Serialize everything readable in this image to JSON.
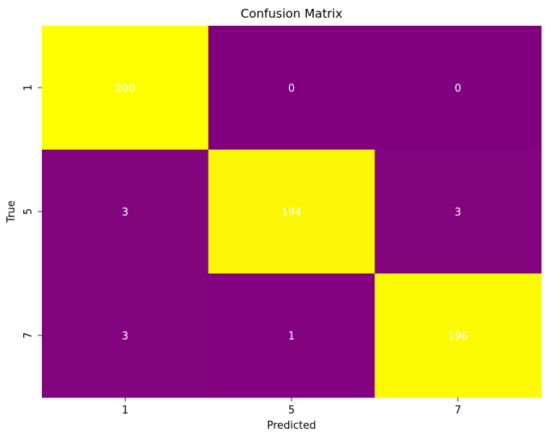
{
  "chart_data": {
    "type": "heatmap",
    "title": "Confusion Matrix",
    "xlabel": "Predicted",
    "ylabel": "True",
    "x_categories": [
      "1",
      "5",
      "7"
    ],
    "y_categories": [
      "1",
      "5",
      "7"
    ],
    "values": [
      [
        200,
        0,
        0
      ],
      [
        3,
        194,
        3
      ],
      [
        3,
        1,
        196
      ]
    ],
    "colormap": {
      "low": "#800080",
      "high": "#ffff00"
    },
    "annotation_color": "#ffffff",
    "colorbar": false,
    "grid": false
  }
}
